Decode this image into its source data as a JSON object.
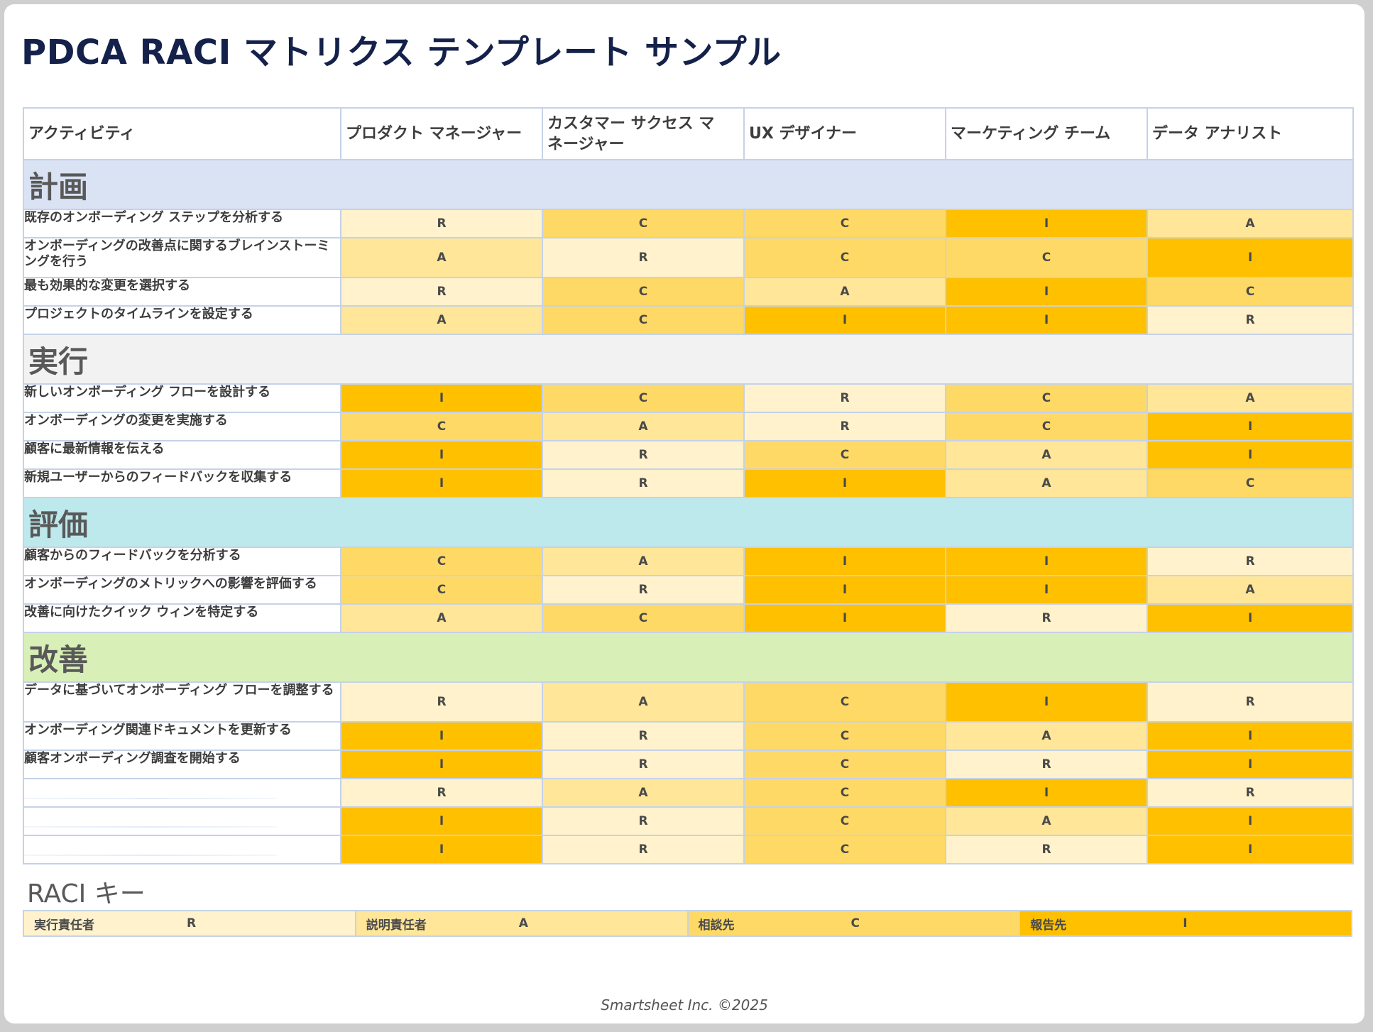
{
  "title": "PDCA RACI マトリクス テンプレート サンプル",
  "headers": [
    "アクティビティ",
    "プロダクト マネージャー",
    "カスタマー サクセス マネージャー",
    "UX デザイナー",
    "マーケティング チーム",
    "データ アナリスト"
  ],
  "phases": [
    {
      "name": "計画",
      "color": "#dae3f3",
      "rows": [
        {
          "activity": "既存のオンボーディング ステップを分析する",
          "values": [
            "R",
            "C",
            "C",
            "I",
            "A"
          ]
        },
        {
          "activity": "オンボーディングの改善点に関するブレインストーミングを行う",
          "values": [
            "A",
            "R",
            "C",
            "C",
            "I"
          ]
        },
        {
          "activity": "最も効果的な変更を選択する",
          "values": [
            "R",
            "C",
            "A",
            "I",
            "C"
          ]
        },
        {
          "activity": "プロジェクトのタイムラインを設定する",
          "values": [
            "A",
            "C",
            "I",
            "I",
            "R"
          ]
        }
      ]
    },
    {
      "name": "実行",
      "color": "#f2f2f2",
      "rows": [
        {
          "activity": "新しいオンボーディング フローを設計する",
          "values": [
            "I",
            "C",
            "R",
            "C",
            "A"
          ]
        },
        {
          "activity": "オンボーディングの変更を実施する",
          "values": [
            "C",
            "A",
            "R",
            "C",
            "I"
          ]
        },
        {
          "activity": "顧客に最新情報を伝える",
          "values": [
            "I",
            "R",
            "C",
            "A",
            "I"
          ]
        },
        {
          "activity": "新規ユーザーからのフィードバックを収集する",
          "values": [
            "I",
            "R",
            "I",
            "A",
            "C"
          ]
        }
      ]
    },
    {
      "name": "評価",
      "color": "#bde8ec",
      "rows": [
        {
          "activity": "顧客からのフィードバックを分析する",
          "values": [
            "C",
            "A",
            "I",
            "I",
            "R"
          ]
        },
        {
          "activity": "オンボーディングのメトリックへの影響を評価する",
          "values": [
            "C",
            "R",
            "I",
            "I",
            "A"
          ]
        },
        {
          "activity": "改善に向けたクイック ウィンを特定する",
          "values": [
            "A",
            "C",
            "I",
            "R",
            "I"
          ]
        }
      ]
    },
    {
      "name": "改善",
      "color": "#d9efb8",
      "rows": [
        {
          "activity": "データに基づいてオンボーディング フローを調整する",
          "values": [
            "R",
            "A",
            "C",
            "I",
            "R"
          ]
        },
        {
          "activity": "オンボーディング関連ドキュメントを更新する",
          "values": [
            "I",
            "R",
            "C",
            "A",
            "I"
          ]
        },
        {
          "activity": "顧客オンボーディング調査を開始する",
          "values": [
            "I",
            "R",
            "C",
            "R",
            "I"
          ]
        },
        {
          "activity": "",
          "values": [
            "R",
            "A",
            "C",
            "I",
            "R"
          ]
        },
        {
          "activity": "",
          "values": [
            "I",
            "R",
            "C",
            "A",
            "I"
          ]
        },
        {
          "activity": "",
          "values": [
            "I",
            "R",
            "C",
            "R",
            "I"
          ]
        }
      ]
    }
  ],
  "key": {
    "title": "RACI キー",
    "items": [
      {
        "label": "実行責任者",
        "code": "R",
        "color": "#fff2cc"
      },
      {
        "label": "説明責任者",
        "code": "A",
        "color": "#ffe699"
      },
      {
        "label": "相談先",
        "code": "C",
        "color": "#ffd966"
      },
      {
        "label": "報告先",
        "code": "I",
        "color": "#ffc000"
      }
    ]
  },
  "footer": "Smartsheet Inc. ©2025"
}
